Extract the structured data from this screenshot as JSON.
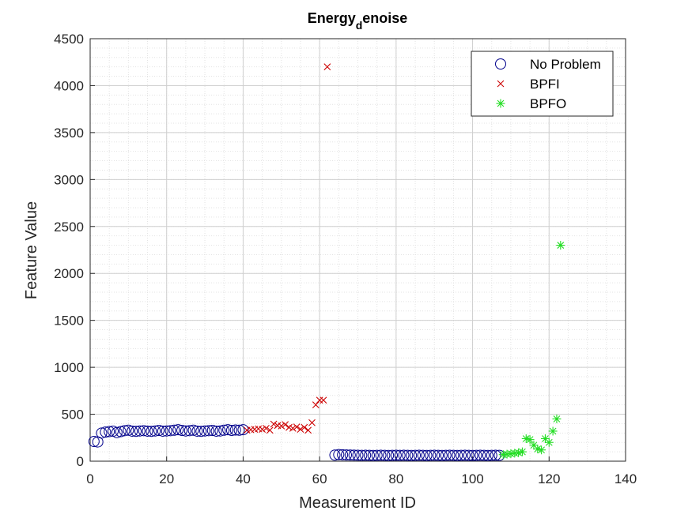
{
  "chart_data": {
    "type": "scatter",
    "title_main": "Energy",
    "title_sub": "d",
    "title_rest": "enoise",
    "xlabel": "Measurement ID",
    "ylabel": "Feature Value",
    "xlim": [
      0,
      140
    ],
    "ylim": [
      0,
      4500
    ],
    "xticks": [
      0,
      20,
      40,
      60,
      80,
      100,
      120,
      140
    ],
    "yticks": [
      0,
      500,
      1000,
      1500,
      2000,
      2500,
      3000,
      3500,
      4000,
      4500
    ],
    "grid": true,
    "minor_grid": true,
    "legend_position": "top-right",
    "series": [
      {
        "name": "No Problem",
        "marker": "circle",
        "color": "#00008B",
        "x": [
          1,
          2,
          3,
          4,
          5,
          6,
          7,
          8,
          9,
          10,
          11,
          12,
          13,
          14,
          15,
          16,
          17,
          18,
          19,
          20,
          21,
          22,
          23,
          24,
          25,
          26,
          27,
          28,
          29,
          30,
          31,
          32,
          33,
          34,
          35,
          36,
          37,
          38,
          39,
          40,
          64,
          65,
          66,
          67,
          68,
          69,
          70,
          71,
          72,
          73,
          74,
          75,
          76,
          77,
          78,
          79,
          80,
          81,
          82,
          83,
          84,
          85,
          86,
          87,
          88,
          89,
          90,
          91,
          92,
          93,
          94,
          95,
          96,
          97,
          98,
          99,
          100,
          101,
          102,
          103,
          104,
          105,
          106,
          107
        ],
        "y": [
          210,
          205,
          300,
          310,
          315,
          320,
          305,
          315,
          325,
          330,
          320,
          318,
          322,
          325,
          320,
          318,
          322,
          328,
          320,
          322,
          325,
          330,
          335,
          328,
          322,
          325,
          330,
          320,
          318,
          322,
          325,
          328,
          320,
          322,
          330,
          335,
          328,
          332,
          330,
          335,
          65,
          70,
          68,
          66,
          65,
          64,
          63,
          62,
          63,
          62,
          61,
          62,
          63,
          62,
          61,
          62,
          63,
          62,
          63,
          62,
          61,
          62,
          63,
          62,
          61,
          62,
          63,
          62,
          61,
          62,
          63,
          62,
          61,
          62,
          63,
          62,
          61,
          62,
          63,
          62,
          61,
          62,
          63,
          62
        ]
      },
      {
        "name": "BPFI",
        "marker": "x",
        "color": "#CC0000",
        "x": [
          41,
          42,
          43,
          44,
          45,
          46,
          47,
          48,
          49,
          50,
          51,
          52,
          53,
          54,
          55,
          56,
          57,
          58,
          59,
          60,
          61,
          62
        ],
        "y": [
          330,
          335,
          340,
          345,
          340,
          350,
          330,
          395,
          380,
          375,
          390,
          360,
          350,
          365,
          340,
          360,
          330,
          410,
          600,
          650,
          650,
          4200
        ]
      },
      {
        "name": "BPFO",
        "marker": "asterisk",
        "color": "#22DD22",
        "x": [
          108,
          109,
          110,
          111,
          112,
          113,
          114,
          115,
          116,
          117,
          118,
          119,
          120,
          121,
          122,
          123
        ],
        "y": [
          70,
          75,
          80,
          85,
          90,
          100,
          240,
          230,
          170,
          130,
          120,
          240,
          200,
          320,
          450,
          2300
        ]
      }
    ]
  }
}
